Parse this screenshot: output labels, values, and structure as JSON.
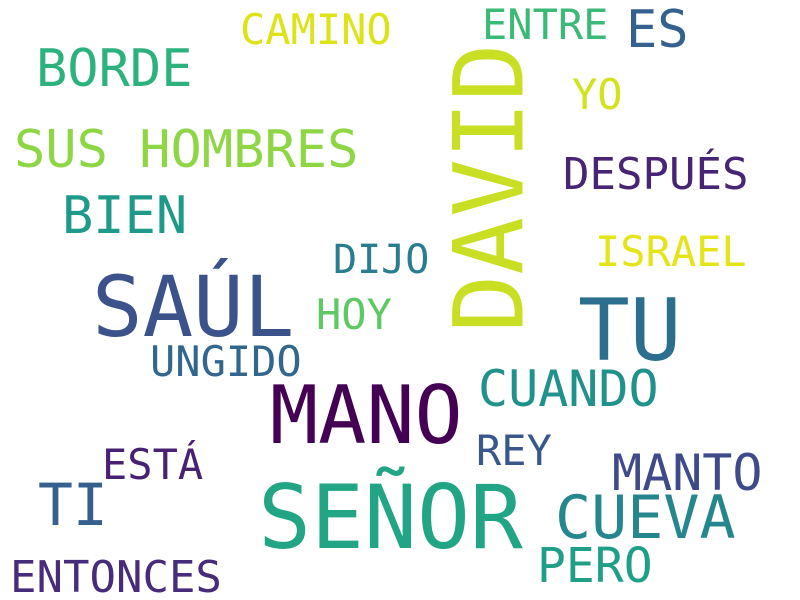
{
  "words": [
    {
      "key": "david",
      "text": "DAVID",
      "color": "#c8df23"
    },
    {
      "key": "senor",
      "text": "SEÑOR",
      "color": "#22a584"
    },
    {
      "key": "mano",
      "text": "MANO",
      "color": "#440154"
    },
    {
      "key": "saul",
      "text": "SAÚL",
      "color": "#3b528b"
    },
    {
      "key": "tu",
      "text": "TU",
      "color": "#2c6e8e"
    },
    {
      "key": "cueva",
      "text": "CUEVA",
      "color": "#25868e"
    },
    {
      "key": "manto",
      "text": "MANTO",
      "color": "#3e4a89"
    },
    {
      "key": "sus_hombres",
      "text": "SUS HOMBRES",
      "color": "#8ed645"
    },
    {
      "key": "borde",
      "text": "BORDE",
      "color": "#2db27d"
    },
    {
      "key": "bien",
      "text": "BIEN",
      "color": "#1f9a8a"
    },
    {
      "key": "ti",
      "text": "TI",
      "color": "#35608d"
    },
    {
      "key": "cuando",
      "text": "CUANDO",
      "color": "#21918c"
    },
    {
      "key": "despues",
      "text": "DESPUÉS",
      "color": "#482475"
    },
    {
      "key": "entonces",
      "text": "ENTONCES",
      "color": "#472c7a"
    },
    {
      "key": "pero",
      "text": "PERO",
      "color": "#1f9f88"
    },
    {
      "key": "ungido",
      "text": "UNGIDO",
      "color": "#31668e"
    },
    {
      "key": "israel",
      "text": "ISRAEL",
      "color": "#e5e419"
    },
    {
      "key": "camino",
      "text": "CAMINO",
      "color": "#dde318"
    },
    {
      "key": "entre",
      "text": "ENTRE",
      "color": "#3aba76"
    },
    {
      "key": "es",
      "text": "ES",
      "color": "#34618d"
    },
    {
      "key": "dijo",
      "text": "DIJO",
      "color": "#287d8e"
    },
    {
      "key": "hoy",
      "text": "HOY",
      "color": "#5ec962"
    },
    {
      "key": "esta",
      "text": "ESTÁ",
      "color": "#482173"
    },
    {
      "key": "rey",
      "text": "REY",
      "color": "#38588c"
    },
    {
      "key": "yo",
      "text": "YO",
      "color": "#d2e21b"
    }
  ]
}
